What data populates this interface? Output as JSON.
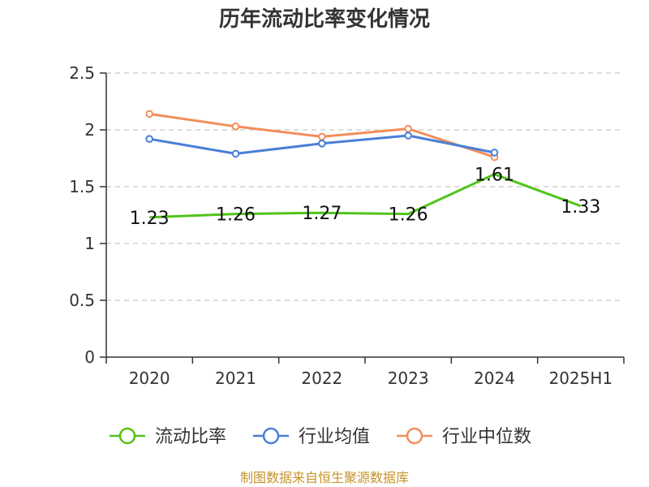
{
  "chart_data": {
    "type": "line",
    "title": "历年流动比率变化情况",
    "categories": [
      "2020",
      "2021",
      "2022",
      "2023",
      "2024",
      "2025H1"
    ],
    "ylim": [
      0,
      2.5
    ],
    "yticks": [
      "0",
      "0.5",
      "1",
      "1.5",
      "2",
      "2.5"
    ],
    "grid": true,
    "legend_position": "bottom",
    "series": [
      {
        "name": "流动比率",
        "color": "#52c41a",
        "values": [
          1.23,
          1.26,
          1.27,
          1.26,
          1.61,
          1.33
        ],
        "labels": [
          "1.23",
          "1.26",
          "1.27",
          "1.26",
          "1.61",
          "1.33"
        ]
      },
      {
        "name": "行业均值",
        "color": "#4a7fd6",
        "values": [
          1.92,
          1.79,
          1.88,
          1.95,
          1.8,
          null
        ]
      },
      {
        "name": "行业中位数",
        "color": "#f28e5c",
        "values": [
          2.14,
          2.03,
          1.94,
          2.01,
          1.76,
          null
        ]
      }
    ]
  },
  "footer": {
    "source": "制图数据来自恒生聚源数据库"
  }
}
